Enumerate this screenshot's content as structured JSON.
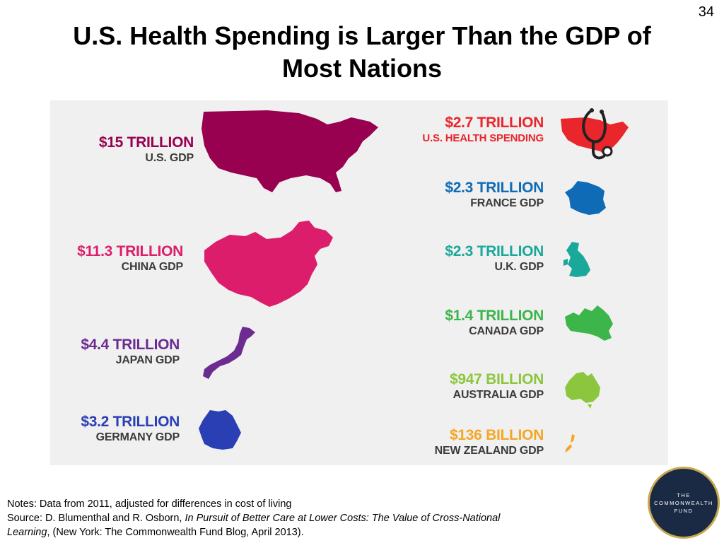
{
  "slide_number": "34",
  "title": {
    "line1": "U.S. Health Spending is Larger Than the GDP of",
    "line2": "Most Nations"
  },
  "colors": {
    "us": "#980050",
    "china": "#dc1d6b",
    "japan": "#6b2b91",
    "germany": "#2b3fb4",
    "us_health": "#e8262c",
    "france": "#0f6bb5",
    "uk": "#1aa89a",
    "canada": "#3cb54a",
    "australia": "#8cc63f",
    "new_zealand": "#f5a623",
    "panel": "#f0f0f0"
  },
  "chart_data": {
    "type": "infographic",
    "unit_note": "GDP and health spending",
    "items": [
      {
        "value_label": "$15 TRILLION",
        "name_label": "U.S. GDP",
        "value": 15.0,
        "icon": "us-map-icon"
      },
      {
        "value_label": "$11.3 TRILLION",
        "name_label": "CHINA GDP",
        "value": 11.3,
        "icon": "china-map-icon"
      },
      {
        "value_label": "$4.4 TRILLION",
        "name_label": "JAPAN GDP",
        "value": 4.4,
        "icon": "japan-map-icon"
      },
      {
        "value_label": "$3.2 TRILLION",
        "name_label": "GERMANY GDP",
        "value": 3.2,
        "icon": "germany-map-icon"
      },
      {
        "value_label": "$2.7 TRILLION",
        "name_label": "U.S. HEALTH SPENDING",
        "value": 2.7,
        "icon": "us-stethoscope-icon"
      },
      {
        "value_label": "$2.3 TRILLION",
        "name_label": "FRANCE GDP",
        "value": 2.3,
        "icon": "france-map-icon"
      },
      {
        "value_label": "$2.3 TRILLION",
        "name_label": "U.K. GDP",
        "value": 2.3,
        "icon": "uk-map-icon"
      },
      {
        "value_label": "$1.4 TRILLION",
        "name_label": "CANADA GDP",
        "value": 1.4,
        "icon": "canada-map-icon"
      },
      {
        "value_label": "$947 BILLION",
        "name_label": "AUSTRALIA GDP",
        "value": 0.947,
        "icon": "australia-map-icon"
      },
      {
        "value_label": "$136 BILLION",
        "name_label": "NEW ZEALAND GDP",
        "value": 0.136,
        "icon": "new-zealand-map-icon"
      }
    ]
  },
  "notes": {
    "line1": "Notes: Data from 2011, adjusted for differences in cost of living",
    "source_prefix": "Source: D. Blumenthal and R. Osborn, ",
    "source_title_a": "In Pursuit of Better Care at Lower Costs: The Value of Cross-National",
    "source_title_b": "Learning",
    "source_suffix": ", (New York: The Commonwealth Fund Blog, April 2013)."
  },
  "logo": {
    "line1": "THE",
    "line2": "COMMONWEALTH",
    "line3": "FUND"
  }
}
